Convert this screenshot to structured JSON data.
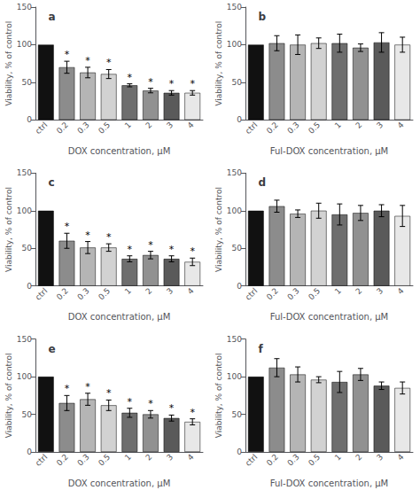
{
  "chart_data": [
    {
      "type": "bar",
      "title": "a",
      "xlabel": "DOX concentration, μM",
      "ylabel": "Viability, % of control",
      "categories": [
        "ctrl",
        "0.2",
        "0.3",
        "0.5",
        "1",
        "2",
        "3",
        "4"
      ],
      "values": [
        100,
        70,
        63,
        61,
        46,
        39,
        36,
        36
      ],
      "errors": [
        0,
        8,
        7,
        6,
        2,
        3,
        3,
        3
      ],
      "colors": [
        "#111111",
        "#8c8c8c",
        "#b5b5b5",
        "#d2d2d2",
        "#6e6e6e",
        "#919191",
        "#5a5a5a",
        "#e8e8e8"
      ],
      "annotations": [
        {
          "x": "0.2",
          "text": "*"
        },
        {
          "x": "0.3",
          "text": "*"
        },
        {
          "x": "0.5",
          "text": "*"
        },
        {
          "x": "1",
          "text": "*"
        },
        {
          "x": "2",
          "text": "*"
        },
        {
          "x": "3",
          "text": "*"
        },
        {
          "x": "4",
          "text": "*"
        }
      ],
      "ylim": [
        0,
        150
      ],
      "yticks": [
        0,
        50,
        100,
        150
      ],
      "grid": false
    },
    {
      "type": "bar",
      "title": "b",
      "xlabel": "Ful-DOX concentration, μM",
      "ylabel": "Viability, % of control",
      "categories": [
        "ctrl",
        "0.2",
        "0.3",
        "0.5",
        "1",
        "2",
        "3",
        "4"
      ],
      "values": [
        100,
        102,
        100,
        102,
        102,
        96,
        103,
        100
      ],
      "errors": [
        0,
        10,
        13,
        7,
        12,
        5,
        13,
        10
      ],
      "colors": [
        "#111111",
        "#8c8c8c",
        "#b5b5b5",
        "#d2d2d2",
        "#6e6e6e",
        "#919191",
        "#5a5a5a",
        "#e8e8e8"
      ],
      "annotations": [],
      "ylim": [
        0,
        150
      ],
      "yticks": [
        0,
        50,
        100,
        150
      ],
      "grid": false
    },
    {
      "type": "bar",
      "title": "c",
      "xlabel": "DOX concentration, μM",
      "ylabel": "Viability, % of control",
      "categories": [
        "ctrl",
        "0.2",
        "0.3",
        "0.5",
        "1",
        "2",
        "3",
        "4"
      ],
      "values": [
        100,
        60,
        51,
        51,
        36,
        41,
        36,
        32
      ],
      "errors": [
        0,
        10,
        8,
        5,
        4,
        5,
        4,
        5
      ],
      "colors": [
        "#111111",
        "#8c8c8c",
        "#b5b5b5",
        "#d2d2d2",
        "#6e6e6e",
        "#919191",
        "#5a5a5a",
        "#e8e8e8"
      ],
      "annotations": [
        {
          "x": "0.2",
          "text": "*"
        },
        {
          "x": "0.3",
          "text": "*"
        },
        {
          "x": "0.5",
          "text": "*"
        },
        {
          "x": "1",
          "text": "*"
        },
        {
          "x": "2",
          "text": "*"
        },
        {
          "x": "3",
          "text": "*"
        },
        {
          "x": "4",
          "text": "*"
        }
      ],
      "ylim": [
        0,
        150
      ],
      "yticks": [
        0,
        50,
        100,
        150
      ],
      "grid": false
    },
    {
      "type": "bar",
      "title": "d",
      "xlabel": "Ful-DOX concentration, μM",
      "ylabel": "Viability, % of control",
      "categories": [
        "ctrl",
        "0.2",
        "0.3",
        "0.5",
        "1",
        "2",
        "3",
        "4"
      ],
      "values": [
        100,
        106,
        96,
        100,
        95,
        97,
        100,
        93
      ],
      "errors": [
        0,
        8,
        5,
        10,
        14,
        10,
        8,
        14
      ],
      "colors": [
        "#111111",
        "#8c8c8c",
        "#b5b5b5",
        "#d2d2d2",
        "#6e6e6e",
        "#919191",
        "#5a5a5a",
        "#e8e8e8"
      ],
      "annotations": [],
      "ylim": [
        0,
        150
      ],
      "yticks": [
        0,
        50,
        100,
        150
      ],
      "grid": false
    },
    {
      "type": "bar",
      "title": "e",
      "xlabel": "DOX concentration, μM",
      "ylabel": "Viability, % of control",
      "categories": [
        "ctrl",
        "0.2",
        "0.3",
        "0.5",
        "1",
        "2",
        "3",
        "4"
      ],
      "values": [
        100,
        65,
        70,
        62,
        52,
        50,
        45,
        40
      ],
      "errors": [
        0,
        10,
        8,
        7,
        6,
        5,
        4,
        4
      ],
      "colors": [
        "#111111",
        "#8c8c8c",
        "#b5b5b5",
        "#d2d2d2",
        "#6e6e6e",
        "#919191",
        "#5a5a5a",
        "#e8e8e8"
      ],
      "annotations": [
        {
          "x": "0.2",
          "text": "*"
        },
        {
          "x": "0.3",
          "text": "*"
        },
        {
          "x": "0.5",
          "text": "*"
        },
        {
          "x": "1",
          "text": "*"
        },
        {
          "x": "2",
          "text": "*"
        },
        {
          "x": "3",
          "text": "*"
        },
        {
          "x": "4",
          "text": "*"
        }
      ],
      "ylim": [
        0,
        150
      ],
      "yticks": [
        0,
        50,
        100,
        150
      ],
      "grid": false
    },
    {
      "type": "bar",
      "title": "f",
      "xlabel": "Ful-DOX concentration, μM",
      "ylabel": "Viability, % of control",
      "categories": [
        "ctrl",
        "0.2",
        "0.3",
        "0.5",
        "1",
        "2",
        "3",
        "4"
      ],
      "values": [
        100,
        112,
        103,
        96,
        93,
        103,
        88,
        85
      ],
      "errors": [
        0,
        12,
        10,
        4,
        14,
        8,
        5,
        8
      ],
      "colors": [
        "#111111",
        "#8c8c8c",
        "#b5b5b5",
        "#d2d2d2",
        "#6e6e6e",
        "#919191",
        "#5a5a5a",
        "#e8e8e8"
      ],
      "annotations": [],
      "ylim": [
        0,
        150
      ],
      "yticks": [
        0,
        50,
        100,
        150
      ],
      "grid": false
    }
  ]
}
